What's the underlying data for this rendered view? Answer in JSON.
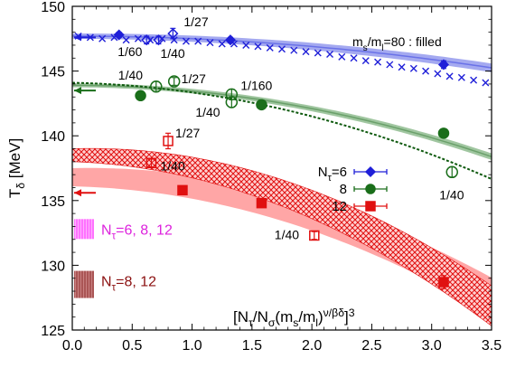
{
  "chart_data": {
    "type": "scatter",
    "title": "",
    "ylabel": "T_δ [MeV]",
    "xlabel": "[N_τ/N_σ(m_s/m_l)^{ν/βδ}]^3",
    "xlim": [
      0.0,
      3.5
    ],
    "ylim": [
      125,
      150
    ],
    "xticks": [
      "0.0",
      "0.5",
      "1.0",
      "1.5",
      "2.0",
      "2.5",
      "3.0",
      "3.5"
    ],
    "yticks": [
      "125",
      "130",
      "135",
      "140",
      "145",
      "150"
    ],
    "grid": false,
    "legend_placement": "center-right",
    "annotation_top_right": "m_s/m_l=80 : filled",
    "colors": {
      "nt6": "#1f1fd8",
      "nt8": "#1a6e1a",
      "nt12": "#e01010",
      "band_blue": "#9aa0ee",
      "band_green": "#88b888",
      "band_red": "#ff9090",
      "legend_pink": "#ff66ff",
      "legend_brown": "#a04a4a",
      "text_magenta": "#dd22dd",
      "text_darkred": "#8b1010"
    },
    "series": [
      {
        "name": "N_τ=6",
        "marker": "diamond",
        "filled": [
          {
            "x": 0.39,
            "y": 147.8,
            "err": 0.2
          },
          {
            "x": 1.32,
            "y": 147.4,
            "err": 0.2
          },
          {
            "x": 3.1,
            "y": 145.5,
            "err": 0.3
          }
        ],
        "open": [
          {
            "x": 0.62,
            "y": 147.4,
            "err": 0.3,
            "label": "1/60"
          },
          {
            "x": 0.72,
            "y": 147.4,
            "err": 0.3,
            "label": "1/40"
          },
          {
            "x": 0.84,
            "y": 147.9,
            "err": 0.4,
            "label": "1/27"
          }
        ],
        "crosses": [
          [
            0.05,
            147.7
          ],
          [
            0.15,
            147.6
          ],
          [
            0.25,
            147.5
          ],
          [
            0.35,
            147.6
          ],
          [
            0.45,
            147.4
          ],
          [
            0.55,
            147.5
          ],
          [
            0.65,
            147.4
          ],
          [
            0.75,
            147.5
          ],
          [
            0.85,
            147.4
          ],
          [
            0.95,
            147.3
          ],
          [
            1.05,
            147.3
          ],
          [
            1.15,
            147.2
          ],
          [
            1.25,
            147.1
          ],
          [
            1.35,
            147.1
          ],
          [
            1.45,
            147.0
          ],
          [
            1.55,
            146.9
          ],
          [
            1.65,
            146.8
          ],
          [
            1.75,
            146.7
          ],
          [
            1.85,
            146.6
          ],
          [
            1.95,
            146.5
          ],
          [
            2.05,
            146.4
          ],
          [
            2.15,
            146.3
          ],
          [
            2.25,
            146.1
          ],
          [
            2.35,
            146.0
          ],
          [
            2.45,
            145.8
          ],
          [
            2.55,
            145.7
          ],
          [
            2.65,
            145.5
          ],
          [
            2.75,
            145.3
          ],
          [
            2.85,
            145.2
          ],
          [
            2.95,
            145.0
          ],
          [
            3.05,
            144.8
          ],
          [
            3.15,
            144.6
          ],
          [
            3.25,
            144.5
          ],
          [
            3.35,
            144.3
          ],
          [
            3.45,
            144.1
          ]
        ],
        "fit_poly": [
          147.7,
          0.0,
          -0.2
        ],
        "band_half_width": 0.2,
        "arrow_y": 147.6
      },
      {
        "name": "8",
        "marker": "circle",
        "filled": [
          {
            "x": 0.57,
            "y": 143.1,
            "err": 0.2
          },
          {
            "x": 1.58,
            "y": 142.4,
            "err": 0.2
          },
          {
            "x": 3.1,
            "y": 140.2,
            "err": 0.2
          }
        ],
        "open": [
          {
            "x": 0.7,
            "y": 143.8,
            "err": 0.4,
            "label": "1/40"
          },
          {
            "x": 0.85,
            "y": 144.2,
            "err": 0.3,
            "label": "1/27"
          },
          {
            "x": 1.33,
            "y": 143.2,
            "err": 0.4,
            "label": "1/160"
          },
          {
            "x": 1.33,
            "y": 142.6,
            "err": 0.4,
            "label": "1/40"
          },
          {
            "x": 3.17,
            "y": 137.2,
            "err": 0.4,
            "label": "1/40"
          }
        ],
        "fit_poly": [
          143.9,
          0.0,
          -0.45
        ],
        "band_half_width": 0.15,
        "dashed_poly": [
          144.1,
          -0.2,
          -0.55
        ],
        "arrow_y": 143.5
      },
      {
        "name": "12",
        "marker": "square",
        "filled": [
          {
            "x": 0.92,
            "y": 135.8,
            "err": 0.3
          },
          {
            "x": 1.58,
            "y": 134.8,
            "err": 0.3
          },
          {
            "x": 3.1,
            "y": 128.7,
            "err": 0.5
          }
        ],
        "open": [
          {
            "x": 0.8,
            "y": 139.6,
            "err": 0.6,
            "label": "1/27"
          },
          {
            "x": 0.66,
            "y": 137.9,
            "err": 0.3,
            "label": "1/40"
          },
          {
            "x": 2.02,
            "y": 132.3,
            "err": 0.3,
            "label": "1/40"
          }
        ],
        "fit_poly": [
          136.8,
          0.0,
          -0.75
        ],
        "band_half_width": 0.7,
        "hatched_poly": [
          138.5,
          0.0,
          -0.95
        ],
        "hatched_half_width": 0.5,
        "arrow_y": 135.6
      }
    ],
    "legend": [
      {
        "label": "N_τ=6",
        "series": 0
      },
      {
        "label": "8",
        "series": 1
      },
      {
        "label": "12",
        "series": 2
      }
    ],
    "legend_boxes": [
      {
        "label": "N_τ=6, 8, 12",
        "color_key": "legend_pink",
        "text_color_key": "text_magenta",
        "y": 132.8
      },
      {
        "label": "N_τ=8, 12",
        "color_key": "legend_brown",
        "text_color_key": "text_darkred",
        "y": 128.8
      }
    ]
  }
}
